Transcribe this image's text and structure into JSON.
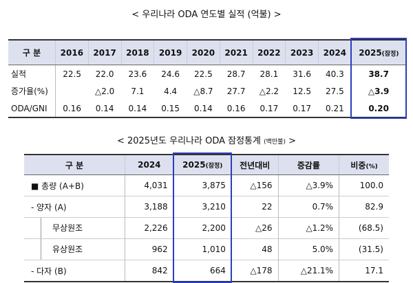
{
  "title1": "< 우리나라 ODA 연도별 실적 (억불) >",
  "table1": {
    "header": [
      "구 분",
      "2016",
      "2017",
      "2018",
      "2019",
      "2020",
      "2021",
      "2022",
      "2023",
      "2024",
      "2025"
    ],
    "header_note": "(잠정)",
    "rows": [
      [
        "실적",
        "22.5",
        "22.0",
        "23.6",
        "24.6",
        "22.5",
        "28.7",
        "28.1",
        "31.6",
        "40.3",
        "38.7"
      ],
      [
        "증가율(%)",
        null,
        "△2.0",
        "7.1",
        "4.4",
        "△8.7",
        "27.7",
        "△2.2",
        "12.5",
        "27.5",
        "△3.9"
      ],
      [
        "ODA/GNI",
        "0.16",
        "0.14",
        "0.14",
        "0.15",
        "0.14",
        "0.16",
        "0.17",
        "0.17",
        "0.21",
        "0.20"
      ]
    ]
  },
  "title2": {
    "text": "< 2025년도 우리나라 ODA 잠정통계",
    "unit": "(백만불)",
    "end": ">"
  },
  "table2": {
    "header": [
      "구 분",
      "2024",
      "2025",
      "전년대비",
      "증감률",
      "비중"
    ],
    "header_notes": {
      "2": "(잠정)",
      "5": "(%)"
    },
    "rows": [
      [
        "■ 총량 (A+B)",
        "4,031",
        "3,875",
        "△156",
        "△3.9%",
        "100.0"
      ],
      [
        "- 양자 (A)",
        "3,188",
        "3,210",
        "22",
        "0.7%",
        "82.9"
      ],
      [
        "무상원조",
        "2,226",
        "2,200",
        "△26",
        "△1.2%",
        "(68.5)"
      ],
      [
        "유상원조",
        "962",
        "1,010",
        "48",
        "5.0%",
        "(31.5)"
      ],
      [
        "- 다자 (B)",
        "842",
        "664",
        "△178",
        "△21.1%",
        "17.1"
      ]
    ]
  }
}
